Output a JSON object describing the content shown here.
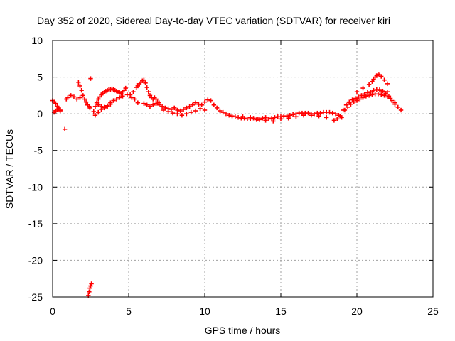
{
  "chart_data": {
    "type": "scatter",
    "title": "Day 352 of 2020, Sidereal Day-to-day VTEC variation (SDTVAR) for receiver kiri",
    "xlabel": "GPS time / hours",
    "ylabel": "SDTVAR / TECUs",
    "xlim": [
      0,
      25
    ],
    "ylim": [
      -25,
      10
    ],
    "xticks": [
      "0",
      "5",
      "10",
      "15",
      "20",
      "25"
    ],
    "yticks": [
      "10",
      "5",
      "0",
      "-5",
      "-10",
      "-15",
      "-20",
      "-25"
    ],
    "grid": true,
    "marker": "+",
    "color": "#ff0000",
    "series": [
      {
        "name": "SDTVAR",
        "x": [
          0.0,
          0.1,
          0.2,
          0.3,
          0.4,
          0.5,
          0.1,
          0.2,
          0.3,
          0.4,
          0.5,
          0.8,
          0.9,
          1.0,
          1.2,
          1.4,
          1.6,
          1.8,
          1.7,
          1.8,
          1.9,
          2.0,
          2.1,
          2.2,
          2.3,
          2.4,
          2.45,
          2.5,
          2.35,
          2.4,
          2.45,
          2.5,
          2.55,
          2.7,
          2.8,
          2.9,
          3.0,
          3.1,
          3.2,
          3.3,
          3.4,
          3.5,
          3.6,
          3.7,
          3.8,
          3.9,
          4.0,
          4.1,
          4.2,
          4.3,
          4.4,
          4.5,
          4.6,
          4.7,
          4.8,
          2.8,
          3.0,
          3.2,
          3.4,
          3.6,
          3.8,
          4.0,
          4.2,
          4.4,
          4.6,
          3.0,
          3.2,
          3.4,
          3.6,
          3.8,
          4.9,
          5.1,
          5.3,
          5.5,
          5.6,
          5.7,
          5.8,
          5.9,
          6.0,
          6.1,
          6.2,
          6.3,
          6.4,
          6.5,
          6.6,
          6.7,
          6.8,
          6.9,
          7.0,
          5.2,
          5.4,
          5.6,
          6.0,
          6.2,
          6.4,
          6.6,
          6.8,
          7.0,
          7.2,
          7.4,
          7.6,
          7.8,
          8.0,
          8.2,
          8.4,
          8.6,
          8.8,
          9.0,
          9.2,
          9.4,
          9.6,
          9.8,
          10.0,
          10.2,
          10.4,
          7.3,
          7.6,
          7.9,
          8.2,
          8.5,
          8.8,
          9.1,
          9.4,
          9.7,
          10.0,
          10.6,
          10.8,
          11.0,
          11.2,
          11.4,
          11.6,
          11.8,
          12.0,
          12.2,
          12.4,
          12.6,
          12.8,
          13.0,
          13.2,
          13.4,
          13.6,
          13.8,
          14.0,
          14.2,
          14.4,
          14.6,
          14.8,
          15.0,
          15.2,
          15.4,
          15.6,
          15.8,
          16.0,
          16.2,
          16.4,
          16.6,
          16.8,
          17.0,
          17.2,
          17.4,
          17.6,
          17.8,
          18.0,
          18.2,
          18.4,
          18.6,
          18.8,
          19.0,
          12.5,
          13.0,
          13.5,
          14.0,
          14.5,
          15.0,
          15.5,
          16.0,
          16.5,
          17.0,
          17.5,
          18.0,
          18.5,
          18.7,
          18.9,
          19.1,
          19.3,
          19.5,
          19.7,
          19.9,
          20.1,
          20.3,
          20.5,
          20.7,
          20.9,
          21.1,
          21.3,
          21.5,
          21.7,
          21.9,
          22.1,
          22.3,
          22.5,
          22.7,
          22.9,
          19.2,
          19.4,
          19.6,
          19.8,
          20.0,
          20.2,
          20.4,
          20.6,
          20.8,
          21.0,
          21.2,
          21.4,
          21.6,
          21.8,
          22.0,
          22.2,
          20.0,
          20.4,
          20.8,
          21.0,
          21.1,
          21.2,
          21.3,
          21.4,
          21.5,
          21.6,
          21.8,
          22.0,
          19.5,
          20.0,
          20.5,
          21.0,
          21.5,
          22.0,
          22.5
        ],
        "y": [
          1.8,
          1.6,
          1.4,
          1.0,
          0.7,
          0.5,
          0.2,
          0.4,
          0.6,
          0.8,
          0.4,
          -2.1,
          2.0,
          2.2,
          2.5,
          2.3,
          2.0,
          2.2,
          4.3,
          3.8,
          3.2,
          2.5,
          2.0,
          1.6,
          1.2,
          1.0,
          0.8,
          4.8,
          -24.8,
          -24.3,
          -23.8,
          -23.5,
          -23.2,
          0.3,
          1.0,
          1.5,
          2.0,
          2.3,
          2.6,
          2.8,
          3.0,
          3.1,
          3.2,
          3.3,
          3.3,
          3.4,
          3.3,
          3.2,
          3.1,
          3.0,
          2.9,
          2.8,
          3.0,
          3.2,
          3.5,
          -0.2,
          0.2,
          0.6,
          0.9,
          1.1,
          1.5,
          1.8,
          2.0,
          2.2,
          2.4,
          1.2,
          1.0,
          0.8,
          1.0,
          1.3,
          2.6,
          2.6,
          3.0,
          3.6,
          3.8,
          4.1,
          4.3,
          4.5,
          4.6,
          4.2,
          3.6,
          3.0,
          2.5,
          2.2,
          2.0,
          2.2,
          2.0,
          1.6,
          1.5,
          2.2,
          2.0,
          1.5,
          1.4,
          1.2,
          1.0,
          1.2,
          1.4,
          1.2,
          1.0,
          0.8,
          0.7,
          0.6,
          0.8,
          0.5,
          0.4,
          0.6,
          0.8,
          1.0,
          1.2,
          1.5,
          1.3,
          1.2,
          1.6,
          1.9,
          1.8,
          0.5,
          0.3,
          0.1,
          0.0,
          -0.2,
          0.0,
          0.2,
          0.4,
          0.7,
          0.5,
          1.2,
          0.8,
          0.4,
          0.2,
          0.0,
          -0.2,
          -0.3,
          -0.4,
          -0.5,
          -0.6,
          -0.6,
          -0.7,
          -0.7,
          -0.6,
          -0.8,
          -0.8,
          -0.6,
          -0.5,
          -0.7,
          -0.6,
          -0.5,
          -0.4,
          -0.4,
          -0.3,
          -0.3,
          -0.2,
          -0.1,
          0.0,
          0.1,
          0.1,
          0.1,
          0.1,
          0.0,
          0.0,
          0.1,
          0.1,
          0.2,
          0.2,
          0.2,
          0.1,
          0.0,
          -0.2,
          -0.5,
          -0.4,
          -0.5,
          -0.7,
          -0.9,
          -1.0,
          -0.7,
          -0.6,
          -0.4,
          -0.2,
          -0.2,
          -0.3,
          -0.5,
          -0.9,
          -0.7,
          -0.3,
          0.5,
          1.2,
          1.6,
          1.9,
          2.1,
          2.3,
          2.5,
          2.7,
          2.9,
          3.0,
          3.2,
          3.3,
          3.3,
          3.1,
          2.8,
          2.4,
          1.8,
          1.3,
          0.9,
          0.5,
          0.5,
          0.9,
          1.3,
          1.6,
          1.8,
          2.0,
          2.2,
          2.4,
          2.5,
          2.6,
          2.7,
          2.7,
          2.6,
          2.5,
          2.3,
          2.1,
          3.0,
          3.5,
          4.0,
          4.4,
          4.7,
          5.0,
          5.2,
          5.4,
          5.3,
          5.1,
          4.6,
          4.1,
          1.5,
          2.0,
          2.5,
          3.0,
          3.2,
          3.0,
          1.5
        ]
      }
    ]
  }
}
